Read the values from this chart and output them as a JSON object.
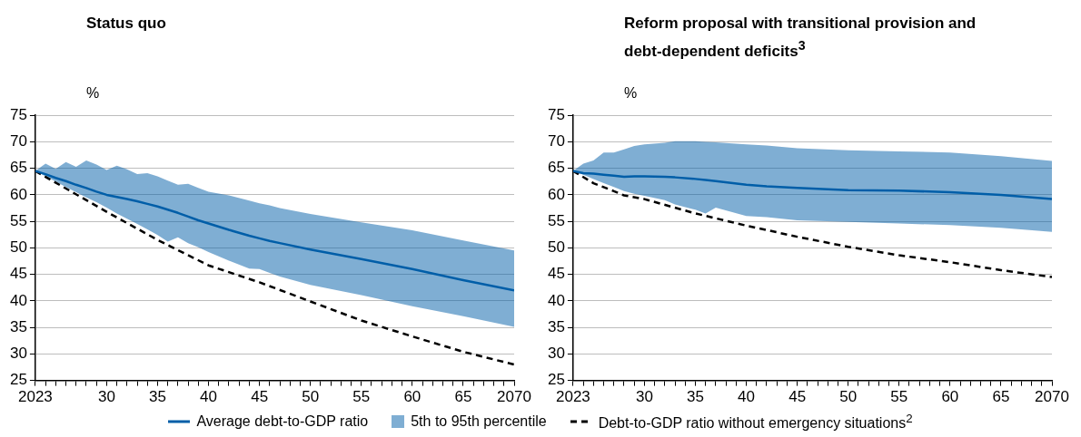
{
  "chart_data": [
    {
      "type": "line",
      "title": "Status quo",
      "ylabel": "%",
      "xlim": [
        2023,
        2070
      ],
      "ylim": [
        25,
        75
      ],
      "yticks": [
        25,
        30,
        35,
        40,
        45,
        50,
        55,
        60,
        65,
        70,
        75
      ],
      "xticks": [
        {
          "value": 2023,
          "label": "2023"
        },
        {
          "value": 2024,
          "label": null
        },
        {
          "value": 2025,
          "label": null
        },
        {
          "value": 2026,
          "label": null
        },
        {
          "value": 2027,
          "label": null
        },
        {
          "value": 2028,
          "label": null
        },
        {
          "value": 2029,
          "label": null
        },
        {
          "value": 2030,
          "label": "30"
        },
        {
          "value": 2031,
          "label": null
        },
        {
          "value": 2032,
          "label": null
        },
        {
          "value": 2033,
          "label": null
        },
        {
          "value": 2034,
          "label": null
        },
        {
          "value": 2035,
          "label": "35"
        },
        {
          "value": 2036,
          "label": null
        },
        {
          "value": 2037,
          "label": null
        },
        {
          "value": 2038,
          "label": null
        },
        {
          "value": 2039,
          "label": null
        },
        {
          "value": 2040,
          "label": "40"
        },
        {
          "value": 2041,
          "label": null
        },
        {
          "value": 2042,
          "label": null
        },
        {
          "value": 2043,
          "label": null
        },
        {
          "value": 2044,
          "label": null
        },
        {
          "value": 2045,
          "label": "45"
        },
        {
          "value": 2046,
          "label": null
        },
        {
          "value": 2047,
          "label": null
        },
        {
          "value": 2048,
          "label": null
        },
        {
          "value": 2049,
          "label": null
        },
        {
          "value": 2050,
          "label": "50"
        },
        {
          "value": 2051,
          "label": null
        },
        {
          "value": 2052,
          "label": null
        },
        {
          "value": 2053,
          "label": null
        },
        {
          "value": 2054,
          "label": null
        },
        {
          "value": 2055,
          "label": "55"
        },
        {
          "value": 2056,
          "label": null
        },
        {
          "value": 2057,
          "label": null
        },
        {
          "value": 2058,
          "label": null
        },
        {
          "value": 2059,
          "label": null
        },
        {
          "value": 2060,
          "label": "60"
        },
        {
          "value": 2061,
          "label": null
        },
        {
          "value": 2062,
          "label": null
        },
        {
          "value": 2063,
          "label": null
        },
        {
          "value": 2064,
          "label": null
        },
        {
          "value": 2065,
          "label": "65"
        },
        {
          "value": 2066,
          "label": null
        },
        {
          "value": 2067,
          "label": null
        },
        {
          "value": 2068,
          "label": null
        },
        {
          "value": 2069,
          "label": null
        },
        {
          "value": 2070,
          "label": "2070"
        }
      ],
      "grid": "y",
      "legend": "bottom",
      "annotations": [
        "5th to 95th percentile"
      ],
      "series": [
        {
          "name": "Average debt-to-GDP ratio",
          "type": "line",
          "color": "#005ea8",
          "line_style": "solid",
          "x": [
            2023,
            2024,
            2025,
            2026,
            2027,
            2028,
            2029,
            2030,
            2031,
            2032,
            2033,
            2034,
            2035,
            2036,
            2037,
            2038,
            2039,
            2040,
            2042,
            2044,
            2045,
            2046,
            2047,
            2050,
            2055,
            2060,
            2065,
            2070
          ],
          "values": [
            64.5,
            63.9,
            63.2,
            62.6,
            61.9,
            61.3,
            60.6,
            60.0,
            59.6,
            59.2,
            58.8,
            58.3,
            57.8,
            57.2,
            56.6,
            55.9,
            55.2,
            54.6,
            53.4,
            52.3,
            51.8,
            51.3,
            50.9,
            49.7,
            47.9,
            46.0,
            43.9,
            42.0
          ],
          "upper": [
            64.5,
            65.9,
            64.9,
            66.2,
            65.3,
            66.5,
            65.7,
            64.7,
            65.5,
            64.8,
            63.9,
            64.1,
            63.5,
            62.7,
            61.9,
            62.1,
            61.3,
            60.6,
            59.9,
            58.9,
            58.4,
            58.0,
            57.5,
            56.4,
            54.8,
            53.3,
            51.4,
            49.5
          ],
          "lower": [
            64.5,
            63.5,
            62.5,
            61.5,
            60.5,
            59.5,
            58.6,
            57.6,
            56.5,
            55.5,
            54.5,
            53.5,
            52.4,
            51.2,
            52.0,
            50.9,
            50.1,
            49.2,
            47.6,
            46.1,
            46.0,
            45.3,
            44.6,
            43.0,
            41.1,
            39.0,
            37.1,
            35.1
          ]
        },
        {
          "name": "Debt-to-GDP ratio without emergency situations$^{2}$",
          "type": "line",
          "color": "#000000",
          "line_style": "dashed",
          "x": [
            2023,
            2030,
            2035,
            2040,
            2045,
            2050,
            2055,
            2060,
            2065,
            2070
          ],
          "values": [
            64.5,
            56.8,
            51.5,
            46.7,
            43.5,
            39.9,
            36.3,
            33.3,
            30.4,
            28.0
          ]
        }
      ]
    },
    {
      "type": "line",
      "title": "Reform proposal with transitional provision and debt-dependent deficits$^{3}$",
      "ylabel": "%",
      "xlim": [
        2023,
        2070
      ],
      "ylim": [
        25,
        75
      ],
      "yticks": [
        25,
        30,
        35,
        40,
        45,
        50,
        55,
        60,
        65,
        70,
        75
      ],
      "xticks": [
        {
          "value": 2023,
          "label": "2023"
        },
        {
          "value": 2024,
          "label": null
        },
        {
          "value": 2025,
          "label": null
        },
        {
          "value": 2026,
          "label": null
        },
        {
          "value": 2027,
          "label": null
        },
        {
          "value": 2028,
          "label": null
        },
        {
          "value": 2029,
          "label": null
        },
        {
          "value": 2030,
          "label": "30"
        },
        {
          "value": 2031,
          "label": null
        },
        {
          "value": 2032,
          "label": null
        },
        {
          "value": 2033,
          "label": null
        },
        {
          "value": 2034,
          "label": null
        },
        {
          "value": 2035,
          "label": "35"
        },
        {
          "value": 2036,
          "label": null
        },
        {
          "value": 2037,
          "label": null
        },
        {
          "value": 2038,
          "label": null
        },
        {
          "value": 2039,
          "label": null
        },
        {
          "value": 2040,
          "label": "40"
        },
        {
          "value": 2041,
          "label": null
        },
        {
          "value": 2042,
          "label": null
        },
        {
          "value": 2043,
          "label": null
        },
        {
          "value": 2044,
          "label": null
        },
        {
          "value": 2045,
          "label": "45"
        },
        {
          "value": 2046,
          "label": null
        },
        {
          "value": 2047,
          "label": null
        },
        {
          "value": 2048,
          "label": null
        },
        {
          "value": 2049,
          "label": null
        },
        {
          "value": 2050,
          "label": "50"
        },
        {
          "value": 2051,
          "label": null
        },
        {
          "value": 2052,
          "label": null
        },
        {
          "value": 2053,
          "label": null
        },
        {
          "value": 2054,
          "label": null
        },
        {
          "value": 2055,
          "label": "55"
        },
        {
          "value": 2056,
          "label": null
        },
        {
          "value": 2057,
          "label": null
        },
        {
          "value": 2058,
          "label": null
        },
        {
          "value": 2059,
          "label": null
        },
        {
          "value": 2060,
          "label": "60"
        },
        {
          "value": 2061,
          "label": null
        },
        {
          "value": 2062,
          "label": null
        },
        {
          "value": 2063,
          "label": null
        },
        {
          "value": 2064,
          "label": null
        },
        {
          "value": 2065,
          "label": "65"
        },
        {
          "value": 2066,
          "label": null
        },
        {
          "value": 2067,
          "label": null
        },
        {
          "value": 2068,
          "label": null
        },
        {
          "value": 2069,
          "label": null
        },
        {
          "value": 2070,
          "label": "2070"
        }
      ],
      "grid": "y",
      "series": [
        {
          "type": "line",
          "color": "#005ea8",
          "line_style": "solid",
          "x": [
            2023,
            2024,
            2025,
            2026,
            2027,
            2028,
            2029,
            2030,
            2032,
            2033,
            2035,
            2036,
            2037,
            2040,
            2042,
            2045,
            2050,
            2055,
            2060,
            2065,
            2070
          ],
          "values": [
            64.5,
            64.1,
            64.0,
            63.8,
            63.6,
            63.4,
            63.5,
            63.5,
            63.4,
            63.3,
            63.0,
            62.8,
            62.6,
            61.9,
            61.6,
            61.3,
            60.9,
            60.8,
            60.5,
            60.0,
            59.2
          ],
          "upper": [
            64.5,
            65.9,
            66.5,
            68.0,
            68.0,
            68.6,
            69.2,
            69.5,
            69.8,
            70.1,
            70.1,
            70.0,
            69.9,
            69.5,
            69.3,
            68.8,
            68.4,
            68.2,
            68.0,
            67.3,
            66.4
          ],
          "lower": [
            64.5,
            63.8,
            63.0,
            62.2,
            61.5,
            60.7,
            60.2,
            59.8,
            59.0,
            58.2,
            57.2,
            56.5,
            57.6,
            56.0,
            55.8,
            55.2,
            54.9,
            54.6,
            54.3,
            53.8,
            53.0
          ]
        },
        {
          "type": "line",
          "color": "#000000",
          "line_style": "dashed",
          "x": [
            2023,
            2025,
            2027,
            2028,
            2030,
            2035,
            2040,
            2045,
            2050,
            2055,
            2060,
            2065,
            2070
          ],
          "values": [
            64.5,
            62.2,
            60.7,
            59.9,
            59.2,
            56.5,
            54.2,
            52.1,
            50.2,
            48.6,
            47.3,
            45.8,
            44.5
          ]
        }
      ]
    }
  ]
}
